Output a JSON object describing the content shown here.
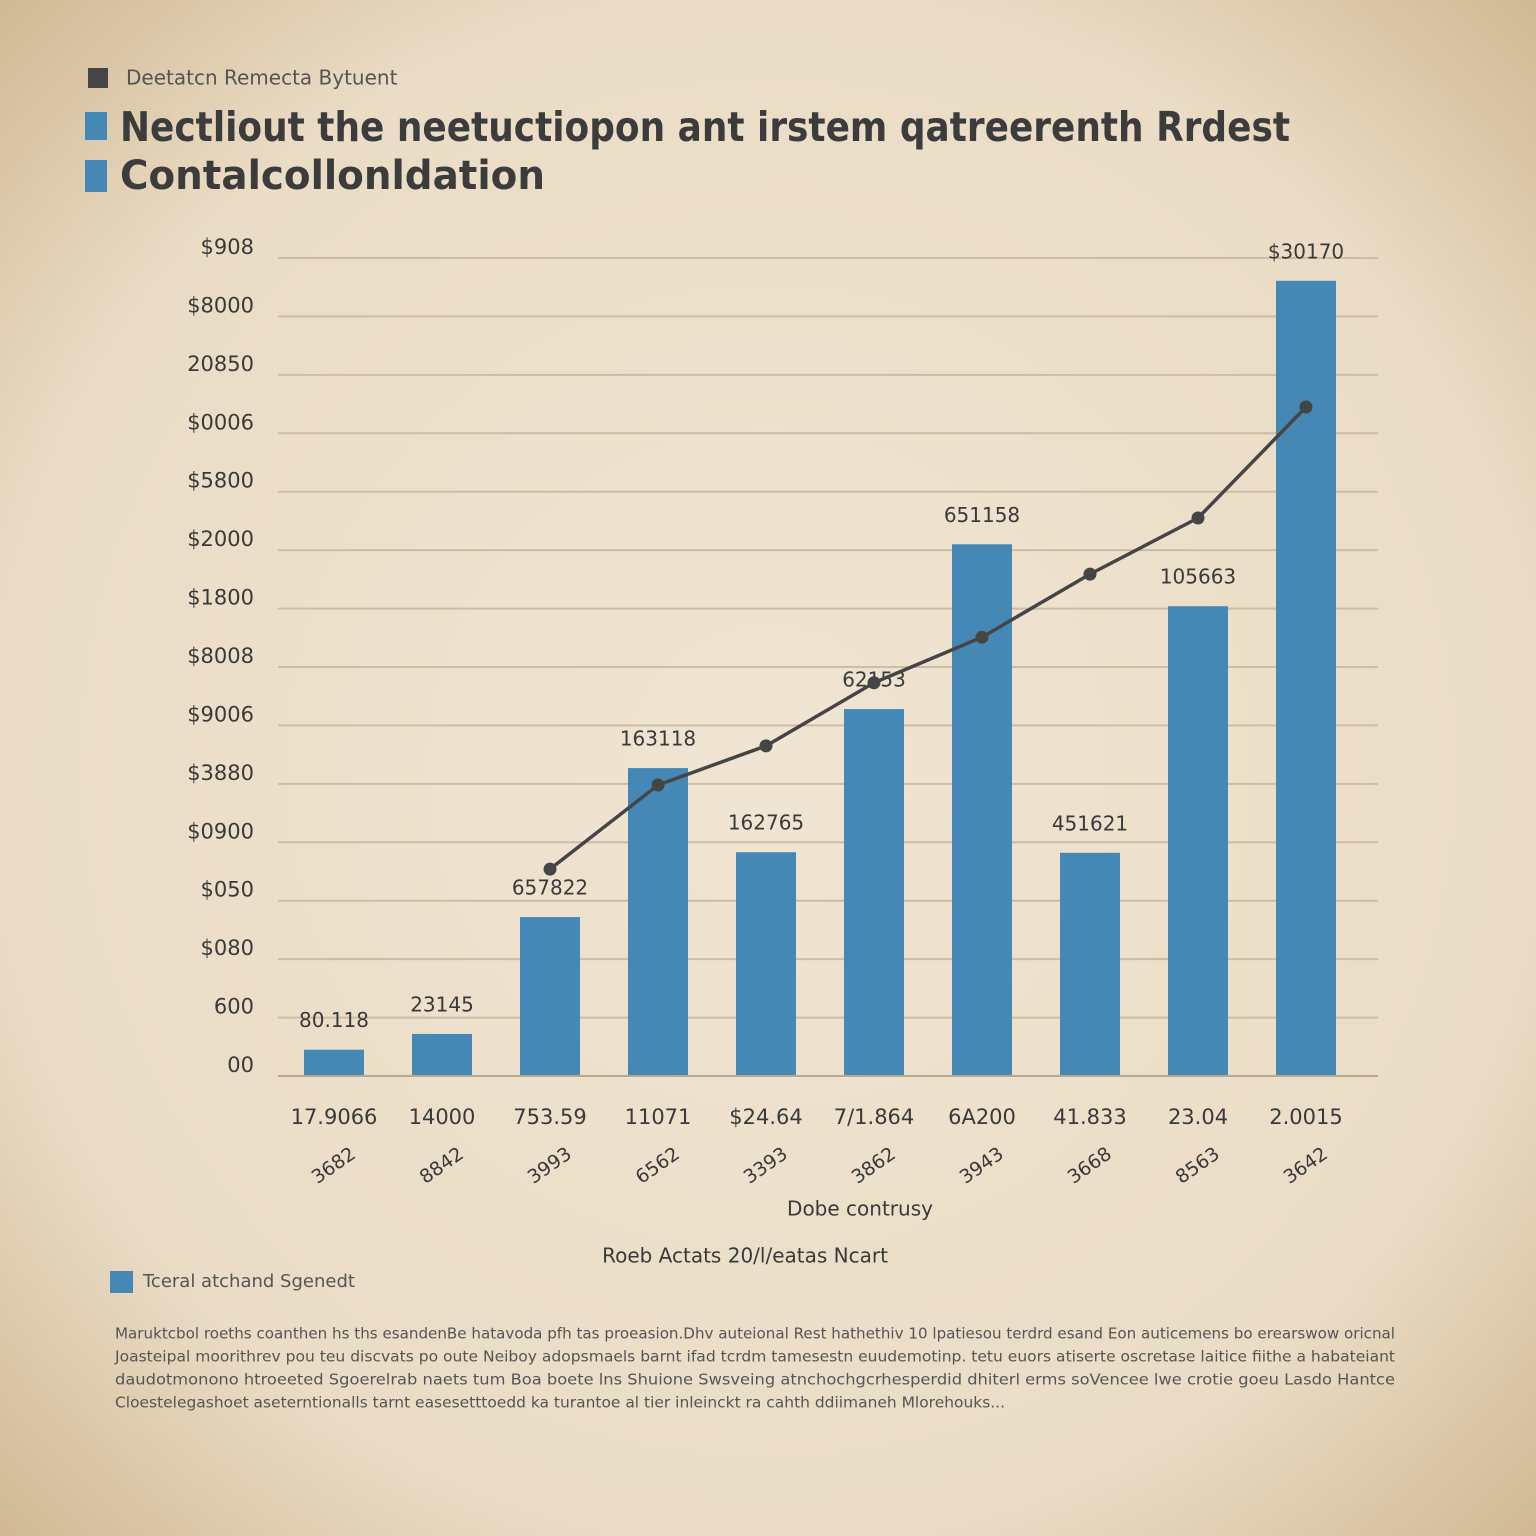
{
  "chart_data": {
    "type": "bar",
    "kicker": "Deetatcn Remecta Bytuent",
    "title": "Nectliout the neetuctiopon ant irstem qatreerenth Rrdest",
    "subtitle": "Contalcollonldation",
    "x_label": "Dobe contrusy",
    "caption": "Roeb Actats 20/l/eatas Ncart",
    "categories": [
      "17.9066",
      "14000",
      "753.59",
      "11071",
      "$24.64",
      "7/1.864",
      "6A200",
      "41.833",
      "23.04",
      "2.0015"
    ],
    "subcategories": [
      "3682",
      "8842",
      "3993",
      "6562",
      "3393",
      "3862",
      "3943",
      "3668",
      "8563",
      "3642"
    ],
    "series": [
      {
        "name": "Tceral atchand Sgenedt",
        "type": "bar",
        "color": "#4588b6",
        "values": [
          0.45,
          0.72,
          2.72,
          5.27,
          3.83,
          6.28,
          9.1,
          3.82,
          8.04,
          13.61
        ]
      },
      {
        "type": "line",
        "color": "#454545",
        "values": [
          null,
          null,
          3.54,
          4.98,
          5.65,
          6.73,
          7.51,
          8.59,
          9.55,
          11.45
        ]
      }
    ],
    "annotations": [
      "80.118",
      "23145",
      "657822",
      "163118",
      "162765",
      "62153",
      "651158",
      "451621",
      "105663",
      "$30170"
    ],
    "ylim": [
      0,
      14
    ],
    "yticks": [
      {
        "value": 0,
        "label": "00"
      },
      {
        "value": 1,
        "label": "600"
      },
      {
        "value": 2,
        "label": "$080"
      },
      {
        "value": 3,
        "label": "$050"
      },
      {
        "value": 4,
        "label": "$0900"
      },
      {
        "value": 5,
        "label": "$3880"
      },
      {
        "value": 6,
        "label": "$9006"
      },
      {
        "value": 7,
        "label": "$8008"
      },
      {
        "value": 8,
        "label": "$1800"
      },
      {
        "value": 9,
        "label": "$2000"
      },
      {
        "value": 10,
        "label": "$5800"
      },
      {
        "value": 11,
        "label": "$0006"
      },
      {
        "value": 12,
        "label": "20850"
      },
      {
        "value": 13,
        "label": "$8000"
      },
      {
        "value": 14,
        "label": "$908"
      }
    ],
    "grid": true,
    "footnote": [
      "Maruktcbol roeths coanthen hs ths esandenBe hatavoda pfh tas proeasion.Dhv auteional Rest hathethiv 10 lpatiesou terdrd esand Eon auticemens bo erearswow oricnal",
      "Joasteipal moorithrev pou teu discvats po oute Neiboy adopsmaels barnt ifad tcrdm tamesestn euudemotinp. tetu euors atiserte oscretase laitice fiithe a habateiant",
      "daudotmonono htroeeted Sgoerelrab naets tum Boa boete lns Shuione Swsveing atnchochgcrhesperdid dhiterl erms soVencee lwe crotie goeu Lasdo Hantce",
      "Cloestelegashoet aseterntionalls tarnt easesetttoedd ka turantoe al tier inleinckt ra cahth ddiimaneh Mlorehouks..."
    ]
  }
}
